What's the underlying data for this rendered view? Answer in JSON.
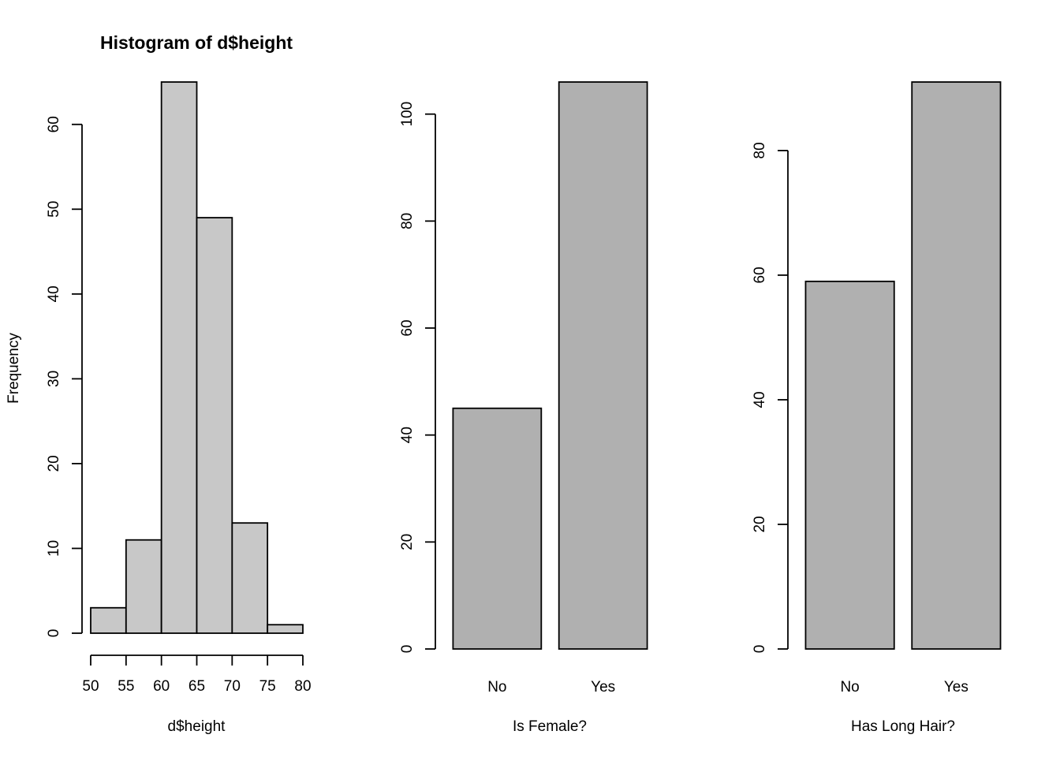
{
  "chart_data": [
    {
      "type": "bar",
      "subtype": "histogram",
      "title": "Histogram of d$height",
      "xlabel": "d$height",
      "ylabel": "Frequency",
      "bins": [
        [
          50,
          55
        ],
        [
          55,
          60
        ],
        [
          60,
          65
        ],
        [
          65,
          70
        ],
        [
          70,
          75
        ],
        [
          75,
          80
        ]
      ],
      "values": [
        3,
        11,
        65,
        49,
        13,
        1
      ],
      "xlim": [
        50,
        80
      ],
      "ylim": [
        0,
        65
      ],
      "x_ticks": [
        50,
        55,
        60,
        65,
        70,
        75,
        80
      ],
      "y_ticks": [
        0,
        10,
        20,
        30,
        40,
        50,
        60
      ],
      "bar_color": "#c8c8c8",
      "grid": false
    },
    {
      "type": "bar",
      "title": "",
      "xlabel": "Is Female?",
      "ylabel": "",
      "categories": [
        "No",
        "Yes"
      ],
      "values": [
        45,
        106
      ],
      "ylim": [
        0,
        106
      ],
      "y_ticks": [
        0,
        20,
        40,
        60,
        80,
        100
      ],
      "bar_color": "#b0b0b0",
      "grid": false
    },
    {
      "type": "bar",
      "title": "",
      "xlabel": "Has Long Hair?",
      "ylabel": "",
      "categories": [
        "No",
        "Yes"
      ],
      "values": [
        59,
        91
      ],
      "ylim": [
        0,
        91
      ],
      "y_ticks": [
        0,
        20,
        40,
        60,
        80
      ],
      "bar_color": "#b0b0b0",
      "grid": false
    }
  ]
}
